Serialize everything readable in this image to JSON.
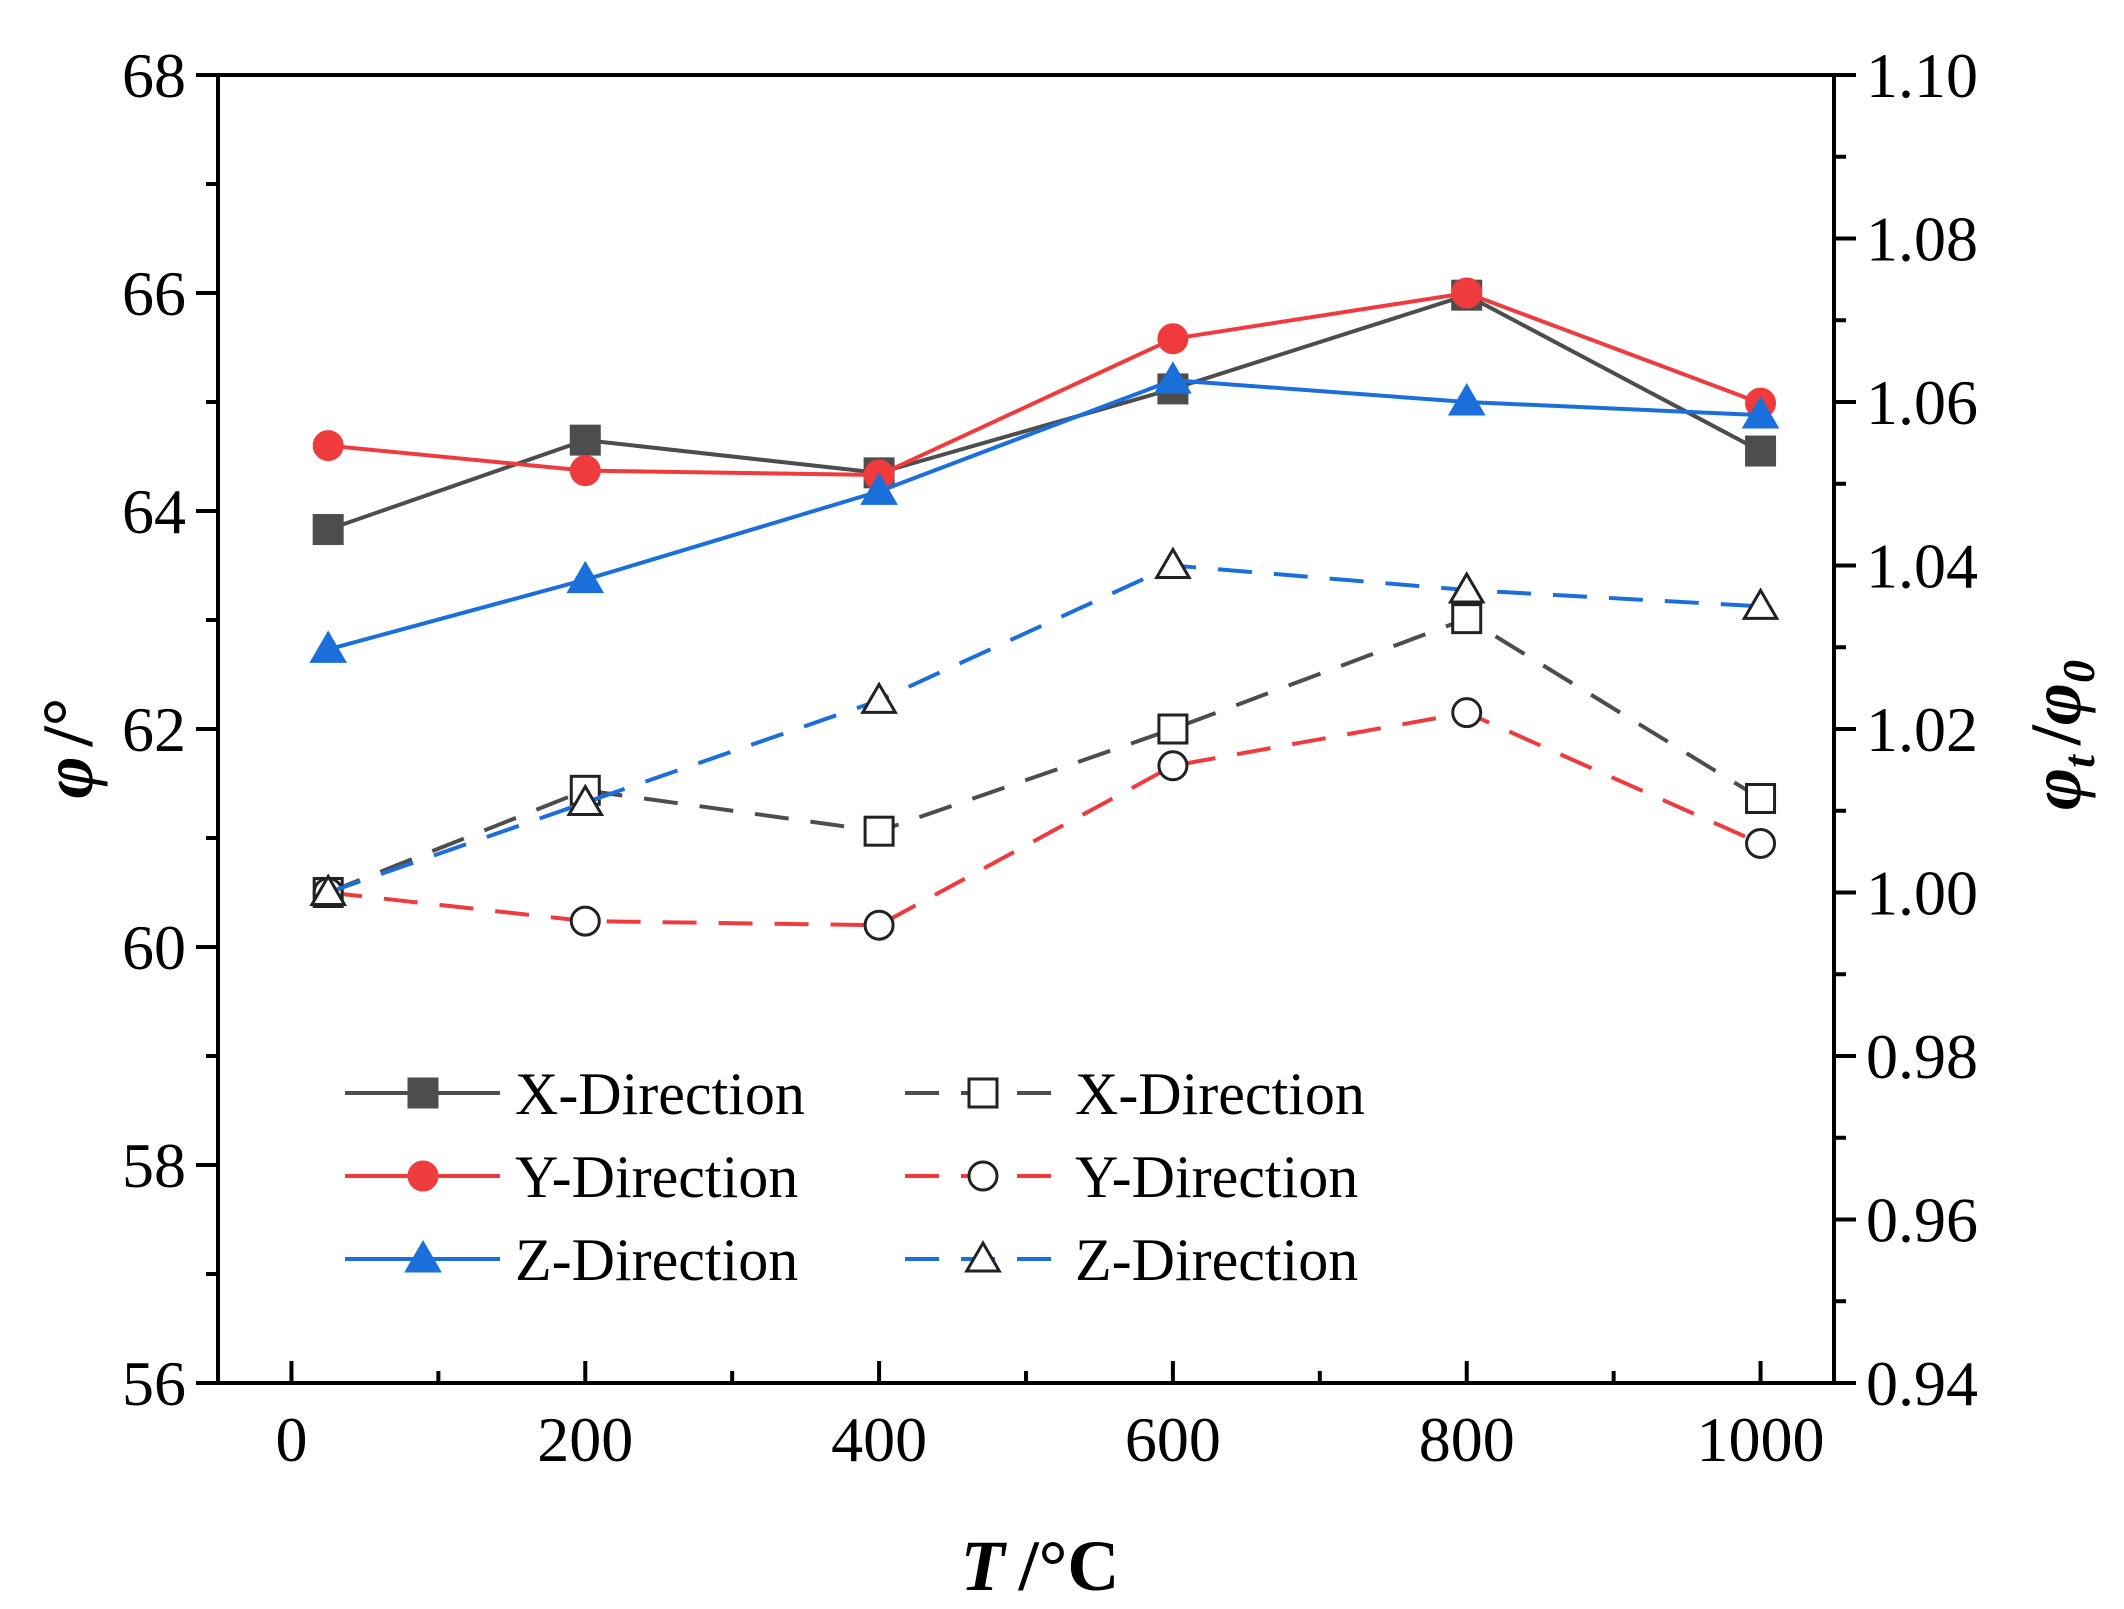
{
  "chart_data": {
    "type": "line",
    "x": [
      25,
      200,
      400,
      600,
      800,
      1000
    ],
    "xlabel": {
      "var": "T",
      "unit": "/°C"
    },
    "ylabel_left": {
      "var": "φ",
      "unit": "/°"
    },
    "ylabel_right": {
      "var": "φ",
      "sub1": "t",
      "sep": "/",
      "sub2": "0"
    },
    "xlim": [
      -50,
      1050
    ],
    "ylim_left": [
      56,
      68
    ],
    "ylim_right": [
      0.94,
      1.1
    ],
    "x_ticks": [
      0,
      200,
      400,
      600,
      800,
      1000
    ],
    "x_tick_labels": [
      "0",
      "200",
      "400",
      "600",
      "800",
      "1000"
    ],
    "y_left_ticks": [
      56,
      58,
      60,
      62,
      64,
      66,
      68
    ],
    "y_left_tick_labels": [
      "56",
      "58",
      "60",
      "62",
      "64",
      "66",
      "68"
    ],
    "y_right_ticks": [
      0.94,
      0.96,
      0.98,
      1.0,
      1.02,
      1.04,
      1.06,
      1.08,
      1.1
    ],
    "y_right_tick_labels": [
      "0.94",
      "0.96",
      "0.98",
      "1.00",
      "1.02",
      "1.04",
      "1.06",
      "1.08",
      "1.10"
    ],
    "grid": false,
    "legend_position": "bottom-left",
    "series": [
      {
        "name": "X-Direction",
        "axis": "left",
        "color": "#4d4d4d",
        "marker": "square-filled",
        "dash": "solid",
        "values": [
          63.83,
          64.65,
          64.35,
          65.12,
          65.98,
          64.55
        ]
      },
      {
        "name": "Y-Direction",
        "axis": "left",
        "color": "#ef3b3e",
        "marker": "circle-filled",
        "dash": "solid",
        "values": [
          64.6,
          64.37,
          64.33,
          65.58,
          66.0,
          64.99
        ]
      },
      {
        "name": "Z-Direction",
        "axis": "left",
        "color": "#1a6fdb",
        "marker": "triangle-filled",
        "dash": "solid",
        "values": [
          62.73,
          63.37,
          64.18,
          65.2,
          65.0,
          64.88
        ]
      },
      {
        "name": "X-Direction",
        "axis": "right",
        "color": "#4d4d4d",
        "marker": "square-open",
        "dash": "dashed",
        "values": [
          1.0,
          1.0125,
          1.0075,
          1.02,
          1.0335,
          1.0115
        ]
      },
      {
        "name": "Y-Direction",
        "axis": "right",
        "color": "#ef3b3e",
        "marker": "circle-open",
        "dash": "dashed",
        "values": [
          1.0,
          0.9965,
          0.996,
          1.0155,
          1.022,
          1.006
        ]
      },
      {
        "name": "Z-Direction",
        "axis": "right",
        "color": "#1a6fdb",
        "marker": "triangle-open",
        "dash": "dashed",
        "values": [
          1.0,
          1.011,
          1.0235,
          1.04,
          1.037,
          1.035
        ]
      }
    ]
  }
}
